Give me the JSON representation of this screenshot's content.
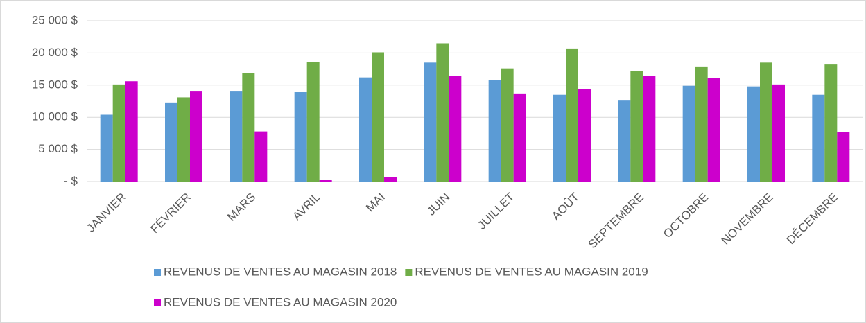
{
  "chart_data": {
    "type": "bar",
    "categories": [
      "JANVIER",
      "FÉVRIER",
      "MARS",
      "AVRIL",
      "MAI",
      "JUIN",
      "JUILLET",
      "AOÛT",
      "SEPTEMBRE",
      "OCTOBRE",
      "NOVEMBRE",
      "DÉCEMBRE"
    ],
    "series": [
      {
        "name": "REVENUS DE VENTES AU MAGASIN 2018",
        "color": "#5b9bd5",
        "values": [
          10400,
          12300,
          14000,
          13900,
          16200,
          18500,
          15800,
          13500,
          12700,
          14900,
          14800,
          13500
        ]
      },
      {
        "name": "REVENUS DE VENTES AU MAGASIN 2019",
        "color": "#70ad47",
        "values": [
          15100,
          13100,
          16900,
          18600,
          20100,
          21500,
          17600,
          20700,
          17200,
          17900,
          18500,
          18200
        ]
      },
      {
        "name": "REVENUS DE VENTES AU MAGASIN 2020",
        "color": "#cc00cc",
        "values": [
          15600,
          14000,
          7800,
          300,
          750,
          16400,
          13700,
          14400,
          16400,
          16100,
          15100,
          7700
        ]
      }
    ],
    "ylim": [
      0,
      25000
    ],
    "yticks": [
      {
        "value": 0,
        "label": "-   $"
      },
      {
        "value": 5000,
        "label": "5 000 $"
      },
      {
        "value": 10000,
        "label": "10 000 $"
      },
      {
        "value": 15000,
        "label": "15 000 $"
      },
      {
        "value": 20000,
        "label": "20 000 $"
      },
      {
        "value": 25000,
        "label": "25 000 $"
      }
    ],
    "grid": true,
    "legend": "bottom"
  }
}
